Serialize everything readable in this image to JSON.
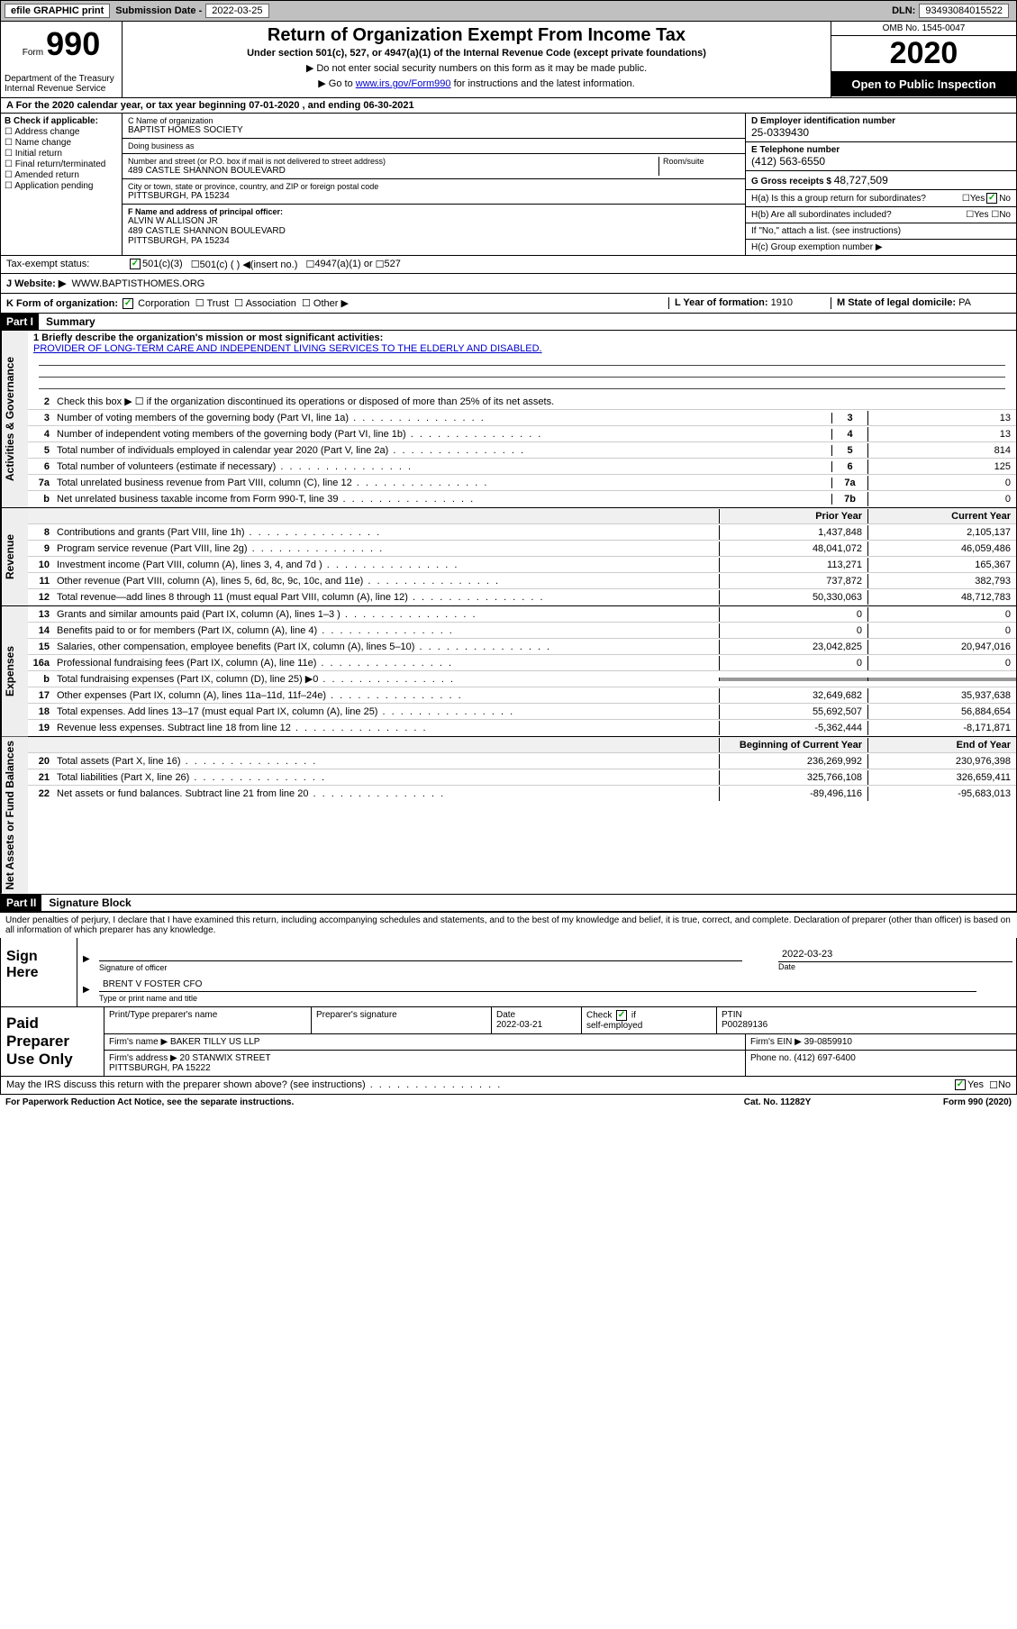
{
  "topbar": {
    "efile": "efile GRAPHIC print",
    "sub_label": "Submission Date -",
    "sub_date": "2022-03-25",
    "dln_label": "DLN:",
    "dln": "93493084015522"
  },
  "header": {
    "form_label": "Form",
    "form_num": "990",
    "dept": "Department of the Treasury\nInternal Revenue Service",
    "title": "Return of Organization Exempt From Income Tax",
    "subtitle": "Under section 501(c), 527, or 4947(a)(1) of the Internal Revenue Code (except private foundations)",
    "note1": "▶ Do not enter social security numbers on this form as it may be made public.",
    "note2_pre": "▶ Go to ",
    "note2_link": "www.irs.gov/Form990",
    "note2_post": " for instructions and the latest information.",
    "omb": "OMB No. 1545-0047",
    "year": "2020",
    "pub": "Open to Public Inspection"
  },
  "row_a": "A For the 2020 calendar year, or tax year beginning 07-01-2020   , and ending 06-30-2021",
  "col_b": {
    "hdr": "B Check if applicable:",
    "items": [
      "Address change",
      "Name change",
      "Initial return",
      "Final return/terminated",
      "Amended return",
      "Application pending"
    ]
  },
  "col_c": {
    "name_label": "C Name of organization",
    "name": "BAPTIST HOMES SOCIETY",
    "dba_label": "Doing business as",
    "dba": "",
    "addr_label": "Number and street (or P.O. box if mail is not delivered to street address)",
    "room_label": "Room/suite",
    "addr": "489 CASTLE SHANNON BOULEVARD",
    "city_label": "City or town, state or province, country, and ZIP or foreign postal code",
    "city": "PITTSBURGH, PA  15234",
    "f_label": "F Name and address of principal officer:",
    "f_name": "ALVIN W ALLISON JR",
    "f_addr": "489 CASTLE SHANNON BOULEVARD\nPITTSBURGH, PA  15234"
  },
  "col_d": {
    "d_label": "D Employer identification number",
    "d_val": "25-0339430",
    "e_label": "E Telephone number",
    "e_val": "(412) 563-6550",
    "g_label": "G Gross receipts $",
    "g_val": "48,727,509",
    "ha_label": "H(a)  Is this a group return for subordinates?",
    "hb_label": "H(b)  Are all subordinates included?",
    "h_note": "If \"No,\" attach a list. (see instructions)",
    "hc_label": "H(c)  Group exemption number ▶"
  },
  "exempt": {
    "label": "Tax-exempt status:",
    "opt1": "501(c)(3)",
    "opt2": "501(c) (  ) ◀(insert no.)",
    "opt3": "4947(a)(1) or",
    "opt4": "527"
  },
  "website": {
    "label": "J    Website: ▶",
    "val": "WWW.BAPTISTHOMES.ORG"
  },
  "org_row": {
    "k_label": "K Form of organization:",
    "k_opts": [
      "Corporation",
      "Trust",
      "Association",
      "Other ▶"
    ],
    "l_label": "L Year of formation:",
    "l_val": "1910",
    "m_label": "M State of legal domicile:",
    "m_val": "PA"
  },
  "part1": {
    "hdr": "Part I",
    "title": "Summary",
    "side_gov": "Activities & Governance",
    "side_rev": "Revenue",
    "side_exp": "Expenses",
    "side_net": "Net Assets or Fund Balances",
    "l1_label": "1  Briefly describe the organization's mission or most significant activities:",
    "l1_text": "PROVIDER OF LONG-TERM CARE AND INDEPENDENT LIVING SERVICES TO THE ELDERLY AND DISABLED.",
    "l2": "Check this box ▶ ☐  if the organization discontinued its operations or disposed of more than 25% of its net assets.",
    "lines_gov": [
      {
        "n": "3",
        "d": "Number of voting members of the governing body (Part VI, line 1a)",
        "b": "3",
        "v": "13"
      },
      {
        "n": "4",
        "d": "Number of independent voting members of the governing body (Part VI, line 1b)",
        "b": "4",
        "v": "13"
      },
      {
        "n": "5",
        "d": "Total number of individuals employed in calendar year 2020 (Part V, line 2a)",
        "b": "5",
        "v": "814"
      },
      {
        "n": "6",
        "d": "Total number of volunteers (estimate if necessary)",
        "b": "6",
        "v": "125"
      },
      {
        "n": "7a",
        "d": "Total unrelated business revenue from Part VIII, column (C), line 12",
        "b": "7a",
        "v": "0"
      },
      {
        "n": "b",
        "d": "Net unrelated business taxable income from Form 990-T, line 39",
        "b": "7b",
        "v": "0"
      }
    ],
    "col_hdr_prior": "Prior Year",
    "col_hdr_curr": "Current Year",
    "lines_rev": [
      {
        "n": "8",
        "d": "Contributions and grants (Part VIII, line 1h)",
        "p": "1,437,848",
        "c": "2,105,137"
      },
      {
        "n": "9",
        "d": "Program service revenue (Part VIII, line 2g)",
        "p": "48,041,072",
        "c": "46,059,486"
      },
      {
        "n": "10",
        "d": "Investment income (Part VIII, column (A), lines 3, 4, and 7d )",
        "p": "113,271",
        "c": "165,367"
      },
      {
        "n": "11",
        "d": "Other revenue (Part VIII, column (A), lines 5, 6d, 8c, 9c, 10c, and 11e)",
        "p": "737,872",
        "c": "382,793"
      },
      {
        "n": "12",
        "d": "Total revenue—add lines 8 through 11 (must equal Part VIII, column (A), line 12)",
        "p": "50,330,063",
        "c": "48,712,783"
      }
    ],
    "lines_exp": [
      {
        "n": "13",
        "d": "Grants and similar amounts paid (Part IX, column (A), lines 1–3 )",
        "p": "0",
        "c": "0"
      },
      {
        "n": "14",
        "d": "Benefits paid to or for members (Part IX, column (A), line 4)",
        "p": "0",
        "c": "0"
      },
      {
        "n": "15",
        "d": "Salaries, other compensation, employee benefits (Part IX, column (A), lines 5–10)",
        "p": "23,042,825",
        "c": "20,947,016"
      },
      {
        "n": "16a",
        "d": "Professional fundraising fees (Part IX, column (A), line 11e)",
        "p": "0",
        "c": "0"
      },
      {
        "n": "b",
        "d": "Total fundraising expenses (Part IX, column (D), line 25) ▶0",
        "p": "",
        "c": "",
        "shaded": true
      },
      {
        "n": "17",
        "d": "Other expenses (Part IX, column (A), lines 11a–11d, 11f–24e)",
        "p": "32,649,682",
        "c": "35,937,638"
      },
      {
        "n": "18",
        "d": "Total expenses. Add lines 13–17 (must equal Part IX, column (A), line 25)",
        "p": "55,692,507",
        "c": "56,884,654"
      },
      {
        "n": "19",
        "d": "Revenue less expenses. Subtract line 18 from line 12",
        "p": "-5,362,444",
        "c": "-8,171,871"
      }
    ],
    "col_hdr_beg": "Beginning of Current Year",
    "col_hdr_end": "End of Year",
    "lines_net": [
      {
        "n": "20",
        "d": "Total assets (Part X, line 16)",
        "p": "236,269,992",
        "c": "230,976,398"
      },
      {
        "n": "21",
        "d": "Total liabilities (Part X, line 26)",
        "p": "325,766,108",
        "c": "326,659,411"
      },
      {
        "n": "22",
        "d": "Net assets or fund balances. Subtract line 21 from line 20",
        "p": "-89,496,116",
        "c": "-95,683,013"
      }
    ]
  },
  "part2": {
    "hdr": "Part II",
    "title": "Signature Block",
    "intro": "Under penalties of perjury, I declare that I have examined this return, including accompanying schedules and statements, and to the best of my knowledge and belief, it is true, correct, and complete. Declaration of preparer (other than officer) is based on all information of which preparer has any knowledge.",
    "sign_label": "Sign Here",
    "sig_of": "Signature of officer",
    "sig_date_label": "Date",
    "sig_date": "2022-03-23",
    "name_title": "BRENT V FOSTER CFO",
    "name_sub": "Type or print name and title",
    "prep_label": "Paid Preparer Use Only",
    "pt_name_label": "Print/Type preparer's name",
    "pt_sig_label": "Preparer's signature",
    "pt_date_label": "Date",
    "pt_date": "2022-03-21",
    "pt_self_label": "Check ☑ if self-employed",
    "ptin_label": "PTIN",
    "ptin": "P00289136",
    "firm_name_label": "Firm's name    ▶",
    "firm_name": "BAKER TILLY US LLP",
    "firm_ein_label": "Firm's EIN ▶",
    "firm_ein": "39-0859910",
    "firm_addr_label": "Firm's address ▶",
    "firm_addr": "20 STANWIX STREET\nPITTSBURGH, PA  15222",
    "phone_label": "Phone no.",
    "phone": "(412) 697-6400",
    "disc": "May the IRS discuss this return with the preparer shown above? (see instructions)",
    "yes": "Yes",
    "no": "No"
  },
  "footer": {
    "pra": "For Paperwork Reduction Act Notice, see the separate instructions.",
    "cat": "Cat. No. 11282Y",
    "form": "Form 990 (2020)"
  }
}
